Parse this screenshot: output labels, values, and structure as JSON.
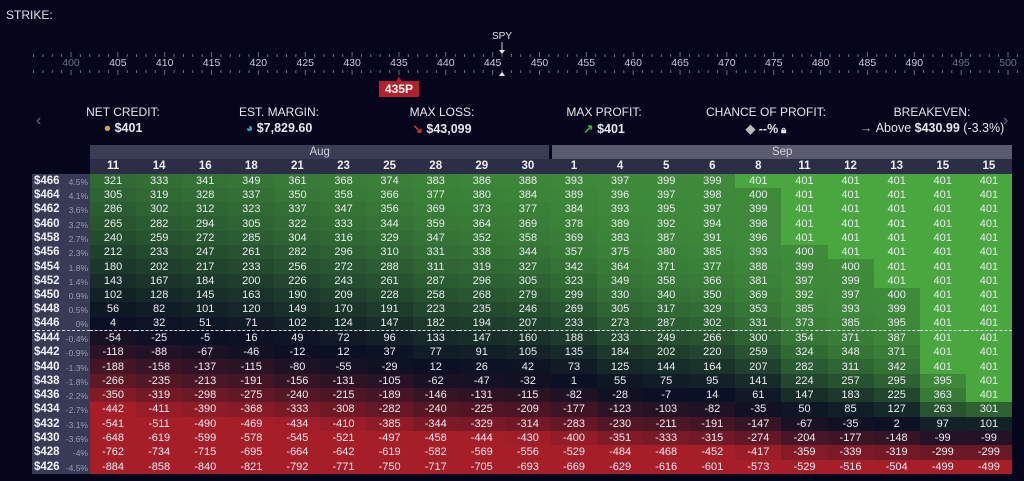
{
  "strike": {
    "label": "STRIKE:",
    "ticker": "SPY",
    "ticker_price": 446,
    "ticks": [
      "400",
      "405",
      "410",
      "415",
      "420",
      "425",
      "430",
      "435",
      "440",
      "445",
      "450",
      "455",
      "460",
      "465",
      "470",
      "475",
      "480",
      "485",
      "490",
      "495",
      "500"
    ],
    "selected_leg": "435P",
    "selected_value": 435
  },
  "stats": [
    {
      "title": "NET CREDIT:",
      "icon": "coins-icon",
      "value": "$401"
    },
    {
      "title": "EST. MARGIN:",
      "icon": "pie-chart-icon",
      "value": "$7,829.60"
    },
    {
      "title": "MAX LOSS:",
      "icon": "arrow-down-red-icon",
      "value": "$43,099"
    },
    {
      "title": "MAX PROFIT:",
      "icon": "arrow-up-green-icon",
      "value": "$401"
    },
    {
      "title": "CHANCE OF PROFIT:",
      "icon": "dice-icon",
      "value": "--%",
      "extra_icon": "lock-icon"
    },
    {
      "title": "BREAKEVEN:",
      "icon": "arrow-right-icon",
      "prefix": "Above",
      "value": "$430.99",
      "suffix": "(-3.3%)"
    }
  ],
  "colors": {
    "profit": "#4aa63f",
    "loss": "#a51e28",
    "neutral": "#0b1024",
    "badge": "#b3222c"
  },
  "table": {
    "months": [
      {
        "label": "Aug",
        "span": 10
      },
      {
        "label": "Sep",
        "span": 10
      }
    ],
    "days": [
      "11",
      "14",
      "16",
      "18",
      "21",
      "23",
      "25",
      "28",
      "29",
      "30",
      "1",
      "4",
      "5",
      "6",
      "8",
      "11",
      "12",
      "13",
      "15",
      "15"
    ],
    "rows": [
      {
        "price": "$466",
        "pct": "4.5%",
        "values": [
          321,
          333,
          341,
          349,
          361,
          368,
          374,
          383,
          386,
          388,
          393,
          397,
          399,
          399,
          401,
          401,
          401,
          401,
          401,
          401
        ]
      },
      {
        "price": "$464",
        "pct": "4.1%",
        "values": [
          305,
          319,
          328,
          337,
          350,
          358,
          366,
          377,
          380,
          384,
          389,
          396,
          397,
          398,
          400,
          401,
          401,
          401,
          401,
          401
        ]
      },
      {
        "price": "$462",
        "pct": "3.6%",
        "values": [
          286,
          302,
          312,
          323,
          337,
          347,
          356,
          369,
          373,
          377,
          384,
          393,
          395,
          397,
          399,
          401,
          401,
          401,
          401,
          401
        ]
      },
      {
        "price": "$460",
        "pct": "3.2%",
        "values": [
          265,
          282,
          294,
          305,
          322,
          333,
          344,
          359,
          364,
          369,
          378,
          389,
          392,
          394,
          398,
          401,
          401,
          401,
          401,
          401
        ]
      },
      {
        "price": "$458",
        "pct": "2.7%",
        "values": [
          240,
          259,
          272,
          285,
          304,
          316,
          329,
          347,
          352,
          358,
          369,
          383,
          387,
          391,
          396,
          401,
          401,
          401,
          401,
          401
        ]
      },
      {
        "price": "$456",
        "pct": "2.3%",
        "values": [
          212,
          233,
          247,
          261,
          282,
          296,
          310,
          331,
          338,
          344,
          357,
          375,
          380,
          385,
          393,
          400,
          401,
          401,
          401,
          401
        ]
      },
      {
        "price": "$454",
        "pct": "1.8%",
        "values": [
          180,
          202,
          217,
          233,
          256,
          272,
          288,
          311,
          319,
          327,
          342,
          364,
          371,
          377,
          388,
          399,
          400,
          401,
          401,
          401
        ]
      },
      {
        "price": "$452",
        "pct": "1.4%",
        "values": [
          143,
          167,
          184,
          200,
          226,
          243,
          261,
          287,
          296,
          305,
          323,
          349,
          358,
          366,
          381,
          397,
          399,
          401,
          401,
          401
        ]
      },
      {
        "price": "$450",
        "pct": "0.9%",
        "values": [
          102,
          128,
          145,
          163,
          190,
          209,
          228,
          258,
          268,
          279,
          299,
          330,
          340,
          350,
          369,
          392,
          397,
          400,
          401,
          401
        ]
      },
      {
        "price": "$448",
        "pct": "0.5%",
        "values": [
          56,
          82,
          101,
          120,
          149,
          170,
          191,
          223,
          235,
          246,
          269,
          305,
          317,
          329,
          353,
          385,
          393,
          399,
          401,
          401
        ]
      },
      {
        "price": "$446",
        "pct": "0%",
        "values": [
          4,
          32,
          51,
          71,
          102,
          124,
          147,
          182,
          194,
          207,
          233,
          273,
          287,
          302,
          331,
          373,
          385,
          395,
          401,
          401
        ]
      },
      {
        "price": "$444",
        "pct": "-0.4%",
        "values": [
          -54,
          -25,
          -5,
          16,
          49,
          72,
          96,
          133,
          147,
          160,
          188,
          233,
          249,
          266,
          300,
          354,
          371,
          387,
          401,
          401
        ]
      },
      {
        "price": "$442",
        "pct": "-0.9%",
        "values": [
          -118,
          -88,
          -67,
          -46,
          -12,
          12,
          37,
          77,
          91,
          105,
          135,
          184,
          202,
          220,
          259,
          324,
          348,
          371,
          401,
          401
        ]
      },
      {
        "price": "$440",
        "pct": "-1.3%",
        "values": [
          -188,
          -158,
          -137,
          -115,
          -80,
          -55,
          -29,
          12,
          26,
          42,
          73,
          125,
          144,
          164,
          207,
          282,
          311,
          342,
          401,
          401
        ]
      },
      {
        "price": "$438",
        "pct": "-1.8%",
        "values": [
          -266,
          -235,
          -213,
          -191,
          -156,
          -131,
          -105,
          -62,
          -47,
          -32,
          1,
          55,
          75,
          95,
          141,
          224,
          257,
          295,
          395,
          401
        ]
      },
      {
        "price": "$436",
        "pct": "-2.2%",
        "values": [
          -350,
          -319,
          -298,
          -275,
          -240,
          -215,
          -189,
          -146,
          -131,
          -115,
          -82,
          -28,
          -7,
          14,
          61,
          147,
          183,
          225,
          363,
          401
        ]
      },
      {
        "price": "$434",
        "pct": "-2.7%",
        "values": [
          -442,
          -411,
          -390,
          -368,
          -333,
          -308,
          -282,
          -240,
          -225,
          -209,
          -177,
          -123,
          -103,
          -82,
          -35,
          50,
          85,
          127,
          263,
          301
        ]
      },
      {
        "price": "$432",
        "pct": "-3.1%",
        "values": [
          -541,
          -511,
          -490,
          -469,
          -434,
          -410,
          -385,
          -344,
          -329,
          -314,
          -283,
          -230,
          -211,
          -191,
          -147,
          -67,
          -35,
          2,
          97,
          101
        ]
      },
      {
        "price": "$430",
        "pct": "-3.6%",
        "values": [
          -648,
          -619,
          -599,
          -578,
          -545,
          -521,
          -497,
          -458,
          -444,
          -430,
          -400,
          -351,
          -333,
          -315,
          -274,
          -204,
          -177,
          -148,
          -99,
          -99
        ]
      },
      {
        "price": "$428",
        "pct": "-4%",
        "values": [
          -762,
          -734,
          -715,
          -695,
          -664,
          -642,
          -619,
          -582,
          -569,
          -556,
          -529,
          -484,
          -468,
          -452,
          -417,
          -359,
          -339,
          -319,
          -299,
          -299
        ]
      },
      {
        "price": "$426",
        "pct": "-4.5%",
        "values": [
          -884,
          -858,
          -840,
          -821,
          -792,
          -771,
          -750,
          -717,
          -705,
          -693,
          -669,
          -629,
          -616,
          -601,
          -573,
          -529,
          -516,
          -504,
          -499,
          -499
        ]
      }
    ],
    "current_price_row": "$446"
  }
}
